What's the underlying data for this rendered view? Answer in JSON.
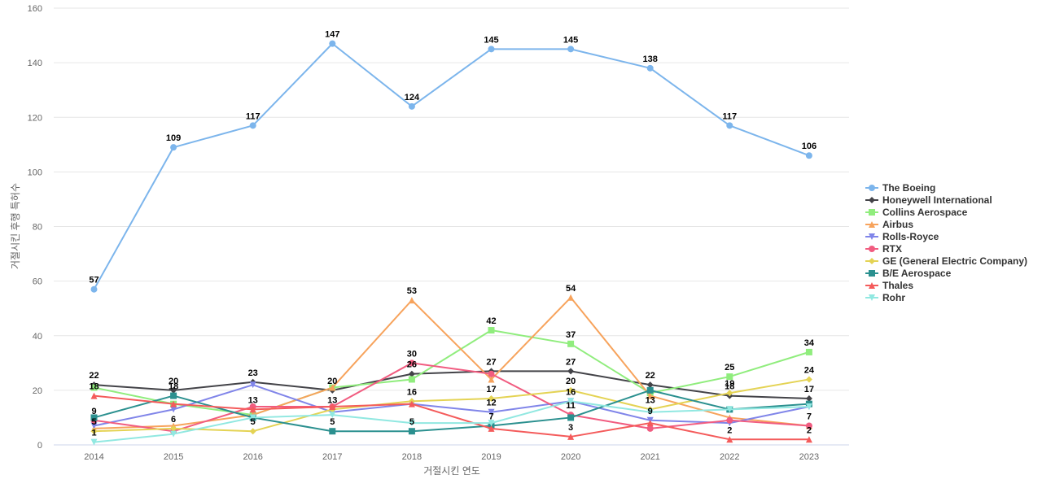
{
  "chart_data": {
    "type": "line",
    "title": "",
    "xlabel": "거절시킨 연도",
    "ylabel": "거절시킨 후행 특허수",
    "ylim": [
      0,
      160
    ],
    "yticks": [
      0,
      20,
      40,
      60,
      80,
      100,
      120,
      140,
      160
    ],
    "grid": "horizontal",
    "legend_position": "right",
    "categories": [
      "2014",
      "2015",
      "2016",
      "2017",
      "2018",
      "2019",
      "2020",
      "2021",
      "2022",
      "2023"
    ],
    "series": [
      {
        "name": "The Boeing",
        "color": "#7cb5ec",
        "marker": "circle",
        "values": [
          57,
          109,
          117,
          147,
          124,
          145,
          145,
          138,
          117,
          106
        ],
        "labels": [
          true,
          true,
          true,
          true,
          true,
          true,
          true,
          true,
          true,
          true
        ]
      },
      {
        "name": "Honeywell International",
        "color": "#434348",
        "marker": "diamond",
        "values": [
          22,
          20,
          23,
          20,
          26,
          27,
          27,
          22,
          18,
          17
        ],
        "labels": [
          true,
          true,
          true,
          true,
          true,
          true,
          true,
          true,
          true,
          true
        ]
      },
      {
        "name": "Collins Aerospace",
        "color": "#90ed7d",
        "marker": "square",
        "values": [
          21,
          15,
          11,
          21,
          24,
          42,
          37,
          19,
          25,
          34
        ],
        "labels": [
          false,
          false,
          false,
          false,
          false,
          true,
          true,
          false,
          true,
          true
        ]
      },
      {
        "name": "Airbus",
        "color": "#f7a35c",
        "marker": "triangle",
        "values": [
          6,
          7,
          11,
          21,
          53,
          24,
          54,
          18,
          10,
          7
        ],
        "labels": [
          false,
          false,
          false,
          false,
          true,
          false,
          true,
          false,
          false,
          false
        ]
      },
      {
        "name": "Rolls-Royce",
        "color": "#8085e9",
        "marker": "triangle-down",
        "values": [
          7,
          13,
          22,
          12,
          15,
          12,
          16,
          9,
          8,
          14
        ],
        "labels": [
          false,
          false,
          false,
          false,
          false,
          true,
          true,
          true,
          false,
          false
        ]
      },
      {
        "name": "RTX",
        "color": "#f15c80",
        "marker": "circle",
        "values": [
          9,
          5,
          14,
          14,
          30,
          26,
          11,
          6,
          9,
          7
        ],
        "labels": [
          true,
          false,
          false,
          false,
          true,
          false,
          true,
          false,
          false,
          true
        ]
      },
      {
        "name": "GE (General Electric Company)",
        "color": "#e4d354",
        "marker": "diamond",
        "values": [
          5,
          6,
          5,
          13,
          16,
          17,
          20,
          13,
          19,
          24
        ],
        "labels": [
          true,
          true,
          true,
          true,
          true,
          true,
          true,
          true,
          true,
          true
        ]
      },
      {
        "name": "B/E Aerospace",
        "color": "#2b908f",
        "marker": "square",
        "values": [
          10,
          18,
          10,
          5,
          5,
          7,
          10,
          20,
          13,
          15
        ],
        "labels": [
          false,
          true,
          false,
          true,
          true,
          true,
          false,
          false,
          false,
          false
        ]
      },
      {
        "name": "Thales",
        "color": "#f45b5b",
        "marker": "triangle",
        "values": [
          18,
          15,
          13,
          14,
          15,
          6,
          3,
          8,
          2,
          2
        ],
        "labels": [
          true,
          false,
          true,
          false,
          false,
          false,
          true,
          false,
          true,
          true
        ]
      },
      {
        "name": "Rohr",
        "color": "#91e8e1",
        "marker": "triangle-down",
        "values": [
          1,
          4,
          10,
          11,
          8,
          8,
          16,
          12,
          13,
          14
        ],
        "labels": [
          true,
          false,
          false,
          false,
          false,
          false,
          false,
          false,
          false,
          false
        ]
      }
    ]
  }
}
